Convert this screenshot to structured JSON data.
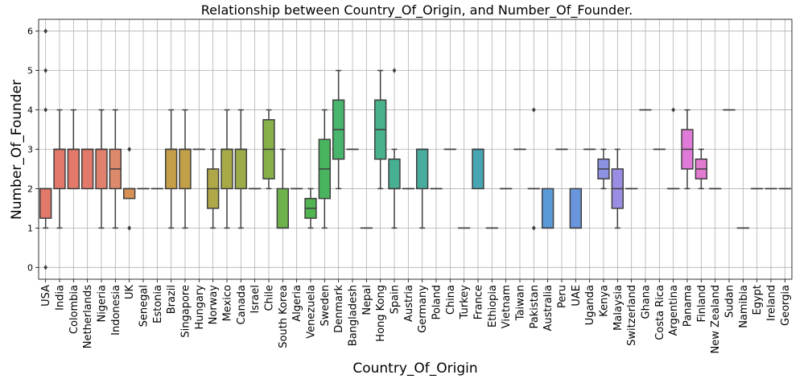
{
  "chart_data": {
    "type": "box",
    "title": "Relationship between Country_Of_Origin, and Number_Of_Founder.",
    "xlabel": "Country_Of_Origin",
    "ylabel": "Number_Of_Founder",
    "ylim": [
      -0.3,
      6.3
    ],
    "yticks": [
      0,
      1,
      2,
      3,
      4,
      5,
      6
    ],
    "grid": true,
    "boxes": [
      {
        "category": "USA",
        "color": "#e2796a",
        "q1": 1.25,
        "median": 2,
        "q3": 2,
        "whislo": 1,
        "whishi": 2,
        "fliers": [
          0,
          4,
          5,
          6
        ]
      },
      {
        "category": "India",
        "color": "#e2796a",
        "q1": 2,
        "median": 3,
        "q3": 3,
        "whislo": 1,
        "whishi": 4,
        "fliers": []
      },
      {
        "category": "Colombia",
        "color": "#e2796a",
        "q1": 2,
        "median": 3,
        "q3": 3,
        "whislo": 2,
        "whishi": 4,
        "fliers": []
      },
      {
        "category": "Netherlands",
        "color": "#e2796a",
        "q1": 2,
        "median": 3,
        "q3": 3,
        "whislo": 2,
        "whishi": 3,
        "fliers": []
      },
      {
        "category": "Nigeria",
        "color": "#e0806d",
        "q1": 2,
        "median": 3,
        "q3": 3,
        "whislo": 1,
        "whishi": 4,
        "fliers": []
      },
      {
        "category": "Indonesia",
        "color": "#dd8a6c",
        "q1": 2,
        "median": 2.5,
        "q3": 3,
        "whislo": 1,
        "whishi": 4,
        "fliers": []
      },
      {
        "category": "UK",
        "color": "#d99055",
        "q1": 1.75,
        "median": 2,
        "q3": 2,
        "whislo": 1.75,
        "whishi": 2,
        "fliers": [
          1,
          3
        ]
      },
      {
        "category": "Senegal",
        "color": "#d19848",
        "q1": 2,
        "median": 2,
        "q3": 2,
        "whislo": 2,
        "whishi": 2,
        "fliers": []
      },
      {
        "category": "Estonia",
        "color": "#cc9c48",
        "q1": 2,
        "median": 2,
        "q3": 2,
        "whislo": 2,
        "whishi": 2,
        "fliers": []
      },
      {
        "category": "Brazil",
        "color": "#c69e48",
        "q1": 2,
        "median": 3,
        "q3": 3,
        "whislo": 1,
        "whishi": 4,
        "fliers": []
      },
      {
        "category": "Singapore",
        "color": "#c2a048",
        "q1": 2,
        "median": 3,
        "q3": 3,
        "whislo": 1,
        "whishi": 4,
        "fliers": []
      },
      {
        "category": "Hungary",
        "color": "#b8a648",
        "q1": 3,
        "median": 3,
        "q3": 3,
        "whislo": 3,
        "whishi": 3,
        "fliers": []
      },
      {
        "category": "Norway",
        "color": "#b0a848",
        "q1": 1.5,
        "median": 2,
        "q3": 2.5,
        "whislo": 1,
        "whishi": 3,
        "fliers": []
      },
      {
        "category": "Mexico",
        "color": "#a8aa48",
        "q1": 2,
        "median": 3,
        "q3": 3,
        "whislo": 1,
        "whishi": 4,
        "fliers": []
      },
      {
        "category": "Canada",
        "color": "#9dac48",
        "q1": 2,
        "median": 3,
        "q3": 3,
        "whislo": 1,
        "whishi": 4,
        "fliers": []
      },
      {
        "category": "Israel",
        "color": "#92ae48",
        "q1": 2,
        "median": 2,
        "q3": 2,
        "whislo": 2,
        "whishi": 2,
        "fliers": []
      },
      {
        "category": "Chile",
        "color": "#86b048",
        "q1": 2.25,
        "median": 3,
        "q3": 3.75,
        "whislo": 2,
        "whishi": 4,
        "fliers": []
      },
      {
        "category": "South Korea",
        "color": "#6db24a",
        "q1": 1,
        "median": 1,
        "q3": 2,
        "whislo": 1,
        "whishi": 3,
        "fliers": []
      },
      {
        "category": "Algeria",
        "color": "#5eb44c",
        "q1": 2,
        "median": 2,
        "q3": 2,
        "whislo": 2,
        "whishi": 2,
        "fliers": []
      },
      {
        "category": "Venezuela",
        "color": "#50b550",
        "q1": 1.25,
        "median": 1.5,
        "q3": 1.75,
        "whislo": 1,
        "whishi": 2,
        "fliers": []
      },
      {
        "category": "Sweden",
        "color": "#48b55e",
        "q1": 1.75,
        "median": 2.5,
        "q3": 3.25,
        "whislo": 1,
        "whishi": 4,
        "fliers": []
      },
      {
        "category": "Denmark",
        "color": "#48b56c",
        "q1": 2.75,
        "median": 3.5,
        "q3": 4.25,
        "whislo": 2,
        "whishi": 5,
        "fliers": []
      },
      {
        "category": "Bangladesh",
        "color": "#48b478",
        "q1": 3,
        "median": 3,
        "q3": 3,
        "whislo": 3,
        "whishi": 3,
        "fliers": []
      },
      {
        "category": "Nepal",
        "color": "#48b382",
        "q1": 1,
        "median": 1,
        "q3": 1,
        "whislo": 1,
        "whishi": 1,
        "fliers": []
      },
      {
        "category": "Hong Kong",
        "color": "#48b28a",
        "q1": 2.75,
        "median": 3.5,
        "q3": 4.25,
        "whislo": 2,
        "whishi": 5,
        "fliers": []
      },
      {
        "category": "Spain",
        "color": "#48b092",
        "q1": 2,
        "median": 2,
        "q3": 2.75,
        "whislo": 1,
        "whishi": 3,
        "fliers": [
          5
        ]
      },
      {
        "category": "Austria",
        "color": "#48ae98",
        "q1": 2,
        "median": 2,
        "q3": 2,
        "whislo": 2,
        "whishi": 2,
        "fliers": []
      },
      {
        "category": "Germany",
        "color": "#48ac9e",
        "q1": 2,
        "median": 3,
        "q3": 3,
        "whislo": 1,
        "whishi": 3,
        "fliers": []
      },
      {
        "category": "Poland",
        "color": "#48aaa4",
        "q1": 2,
        "median": 2,
        "q3": 2,
        "whislo": 2,
        "whishi": 2,
        "fliers": []
      },
      {
        "category": "China",
        "color": "#48a8a8",
        "q1": 3,
        "median": 3,
        "q3": 3,
        "whislo": 3,
        "whishi": 3,
        "fliers": []
      },
      {
        "category": "Turkey",
        "color": "#48a6ac",
        "q1": 1,
        "median": 1,
        "q3": 1,
        "whislo": 1,
        "whishi": 1,
        "fliers": []
      },
      {
        "category": "France",
        "color": "#48a6b4",
        "q1": 2,
        "median": 3,
        "q3": 3,
        "whislo": 2,
        "whishi": 3,
        "fliers": []
      },
      {
        "category": "Ethiopia",
        "color": "#48a4b8",
        "q1": 1,
        "median": 1,
        "q3": 1,
        "whislo": 1,
        "whishi": 1,
        "fliers": []
      },
      {
        "category": "Vietnam",
        "color": "#48a2bc",
        "q1": 2,
        "median": 2,
        "q3": 2,
        "whislo": 2,
        "whishi": 2,
        "fliers": []
      },
      {
        "category": "Taiwan",
        "color": "#4aa0c2",
        "q1": 3,
        "median": 3,
        "q3": 3,
        "whislo": 3,
        "whishi": 3,
        "fliers": []
      },
      {
        "category": "Pakistan",
        "color": "#4e9ec8",
        "q1": 2,
        "median": 2,
        "q3": 2,
        "whislo": 2,
        "whishi": 2,
        "fliers": [
          1,
          4
        ]
      },
      {
        "category": "Australia",
        "color": "#5a9ad8",
        "q1": 1,
        "median": 1,
        "q3": 2,
        "whislo": 1,
        "whishi": 2,
        "fliers": []
      },
      {
        "category": "Peru",
        "color": "#6298dc",
        "q1": 3,
        "median": 3,
        "q3": 3,
        "whislo": 3,
        "whishi": 3,
        "fliers": []
      },
      {
        "category": "UAE",
        "color": "#6a96de",
        "q1": 1,
        "median": 1,
        "q3": 2,
        "whislo": 1,
        "whishi": 2,
        "fliers": []
      },
      {
        "category": "Uganda",
        "color": "#7a94e0",
        "q1": 3,
        "median": 3,
        "q3": 3,
        "whislo": 3,
        "whishi": 3,
        "fliers": []
      },
      {
        "category": "Kenya",
        "color": "#8c92e2",
        "q1": 2.25,
        "median": 2.5,
        "q3": 2.75,
        "whislo": 2,
        "whishi": 3,
        "fliers": []
      },
      {
        "category": "Malaysia",
        "color": "#9a8ee4",
        "q1": 1.5,
        "median": 2,
        "q3": 2.5,
        "whislo": 1,
        "whishi": 3,
        "fliers": []
      },
      {
        "category": "Switzerland",
        "color": "#a88ae4",
        "q1": 2,
        "median": 2,
        "q3": 2,
        "whislo": 2,
        "whishi": 2,
        "fliers": []
      },
      {
        "category": "Ghana",
        "color": "#b486e2",
        "q1": 4,
        "median": 4,
        "q3": 4,
        "whislo": 4,
        "whishi": 4,
        "fliers": []
      },
      {
        "category": "Costa Rica",
        "color": "#c082e0",
        "q1": 3,
        "median": 3,
        "q3": 3,
        "whislo": 3,
        "whishi": 3,
        "fliers": []
      },
      {
        "category": "Argentina",
        "color": "#ce7ede",
        "q1": 2,
        "median": 2,
        "q3": 2,
        "whislo": 2,
        "whishi": 2,
        "fliers": [
          4
        ]
      },
      {
        "category": "Panama",
        "color": "#e07ad8",
        "q1": 2.5,
        "median": 3,
        "q3": 3.5,
        "whislo": 2,
        "whishi": 4,
        "fliers": []
      },
      {
        "category": "Finland",
        "color": "#e27ad0",
        "q1": 2.25,
        "median": 2.5,
        "q3": 2.75,
        "whislo": 2,
        "whishi": 3,
        "fliers": []
      },
      {
        "category": "New Zealand",
        "color": "#e27ac6",
        "q1": 2,
        "median": 2,
        "q3": 2,
        "whislo": 2,
        "whishi": 2,
        "fliers": []
      },
      {
        "category": "Sudan",
        "color": "#e27abc",
        "q1": 4,
        "median": 4,
        "q3": 4,
        "whislo": 4,
        "whishi": 4,
        "fliers": []
      },
      {
        "category": "Namibia",
        "color": "#e27ab2",
        "q1": 1,
        "median": 1,
        "q3": 1,
        "whislo": 1,
        "whishi": 1,
        "fliers": []
      },
      {
        "category": "Egypt",
        "color": "#e27aa8",
        "q1": 2,
        "median": 2,
        "q3": 2,
        "whislo": 2,
        "whishi": 2,
        "fliers": []
      },
      {
        "category": "Ireland",
        "color": "#e27a9e",
        "q1": 2,
        "median": 2,
        "q3": 2,
        "whislo": 2,
        "whishi": 2,
        "fliers": []
      },
      {
        "category": "Georgia",
        "color": "#e27a92",
        "q1": 2,
        "median": 2,
        "q3": 2,
        "whislo": 2,
        "whishi": 2,
        "fliers": []
      }
    ]
  }
}
